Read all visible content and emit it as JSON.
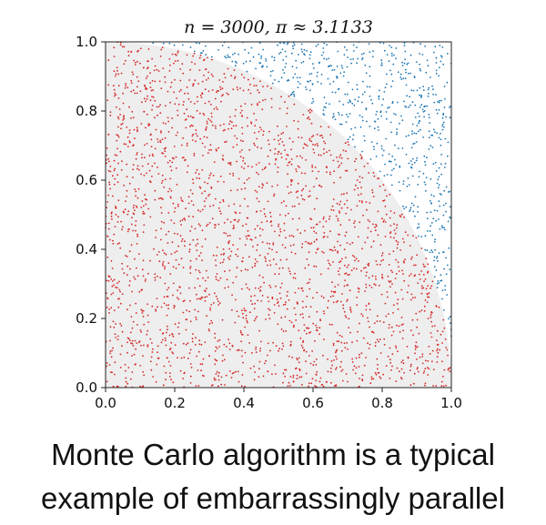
{
  "chart_data": {
    "type": "scatter",
    "title": "n = 3000, π ≈ 3.1133",
    "n_points": 3000,
    "pi_estimate": 3.1133,
    "xlim": [
      0.0,
      1.0
    ],
    "ylim": [
      0.0,
      1.0
    ],
    "x_ticks": [
      "0.0",
      "0.2",
      "0.4",
      "0.6",
      "0.8",
      "1.0"
    ],
    "y_ticks": [
      "0.0",
      "0.2",
      "0.4",
      "0.6",
      "0.8",
      "1.0"
    ],
    "grid": false,
    "series_colors": {
      "inside": "#d62728",
      "outside": "#1f77b4",
      "quarter_circle_fill": "#eeeeee"
    }
  },
  "caption": {
    "line1": "Monte Carlo algorithm is a typical",
    "line2": "example of embarrassingly parallel"
  }
}
